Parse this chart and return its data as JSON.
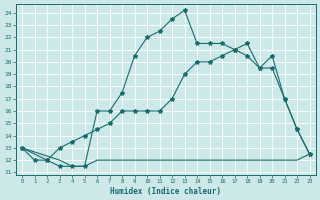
{
  "bg_color": "#cce8e8",
  "line_color": "#1a6b6b",
  "grid_color": "#ffffff",
  "xlim": [
    -0.5,
    23.5
  ],
  "ylim": [
    10.8,
    24.7
  ],
  "xlabel": "Humidex (Indice chaleur)",
  "ytick_vals": [
    11,
    12,
    13,
    14,
    15,
    16,
    17,
    18,
    19,
    20,
    21,
    22,
    23,
    24
  ],
  "xtick_vals": [
    0,
    1,
    2,
    3,
    4,
    5,
    6,
    7,
    8,
    9,
    10,
    11,
    12,
    13,
    14,
    15,
    16,
    17,
    18,
    19,
    20,
    21,
    22,
    23
  ],
  "line1": {
    "x": [
      0,
      1,
      2,
      3,
      4,
      5,
      6,
      7,
      8,
      9,
      10,
      11,
      12,
      13,
      14,
      15,
      16,
      17,
      18,
      19,
      20,
      21,
      22,
      23
    ],
    "y": [
      13,
      12,
      12,
      11.5,
      11.5,
      11.5,
      16,
      16,
      17.5,
      20.5,
      22,
      22.5,
      23.5,
      24.2,
      21.5,
      21.5,
      21.5,
      21,
      20.5,
      19.5,
      20.5,
      17,
      14.5,
      12.5
    ]
  },
  "line2": {
    "x": [
      0,
      2,
      3,
      4,
      5,
      6,
      7,
      8,
      9,
      10,
      11,
      12,
      13,
      14,
      15,
      16,
      17,
      18,
      19,
      20,
      21,
      22,
      23
    ],
    "y": [
      13,
      12,
      13,
      13.5,
      14,
      14.5,
      15,
      16,
      16,
      16,
      16,
      17,
      19,
      20,
      20,
      20.5,
      21,
      21.5,
      19.5,
      19.5,
      17,
      14.5,
      12.5
    ]
  },
  "line3": {
    "x": [
      0,
      3,
      4,
      5,
      6,
      7,
      8,
      9,
      10,
      11,
      12,
      13,
      14,
      15,
      16,
      17,
      18,
      19,
      20,
      21,
      22,
      23
    ],
    "y": [
      13,
      12,
      11.5,
      11.5,
      12,
      12,
      12,
      12,
      12,
      12,
      12,
      12,
      12,
      12,
      12,
      12,
      12,
      12,
      12,
      12,
      12,
      12.5
    ]
  }
}
